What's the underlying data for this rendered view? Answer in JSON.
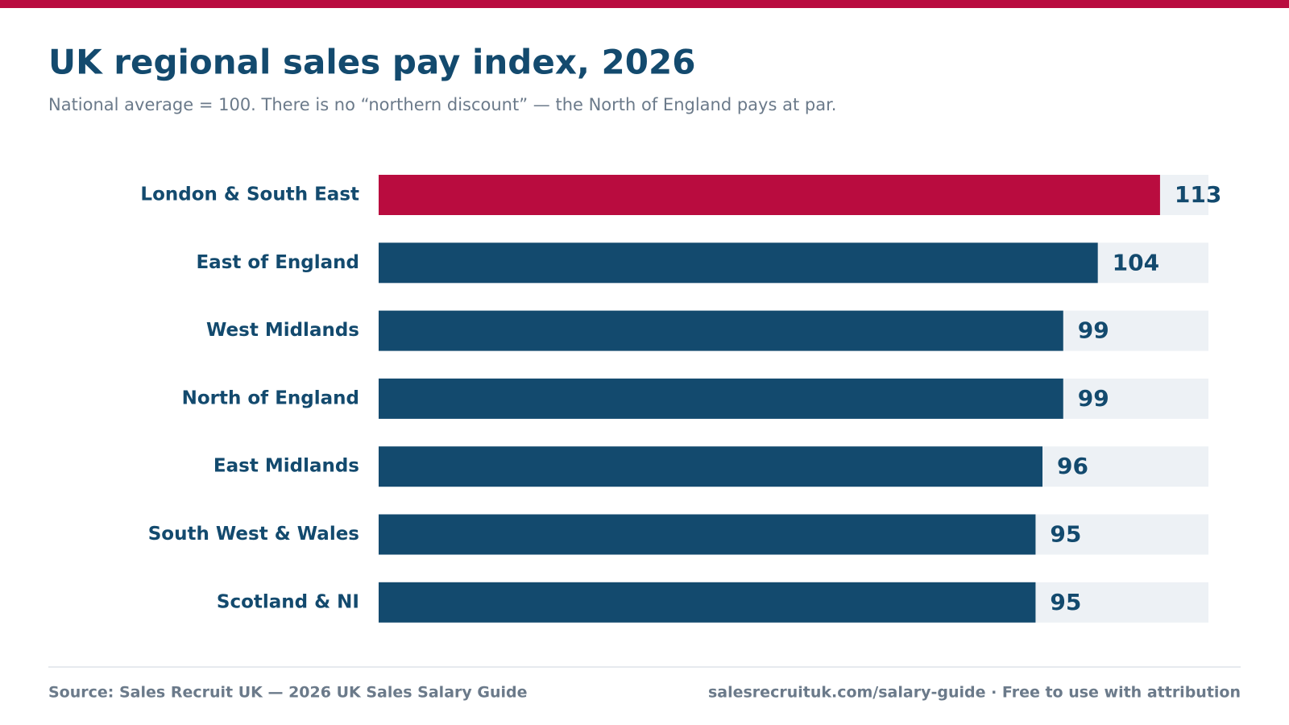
{
  "chart_data": {
    "type": "bar",
    "orientation": "horizontal",
    "title": "UK regional sales pay index, 2026",
    "subtitle": "National average = 100. There is no “northern discount” — the North of England pays at par.",
    "categories": [
      "London & South East",
      "East of England",
      "West Midlands",
      "North of England",
      "East Midlands",
      "South West & Wales",
      "Scotland & NI"
    ],
    "values": [
      113,
      104,
      99,
      99,
      96,
      95,
      95
    ],
    "colors": [
      "#b90c3f",
      "#134a6e",
      "#134a6e",
      "#134a6e",
      "#134a6e",
      "#134a6e",
      "#134a6e"
    ],
    "track_color": "#edf1f5",
    "xlim": [
      0,
      120
    ]
  },
  "footer": {
    "source": "Source: Sales Recruit UK — 2026 UK Sales Salary Guide",
    "credit": "salesrecruituk.com/salary-guide · Free to use with attribution"
  }
}
